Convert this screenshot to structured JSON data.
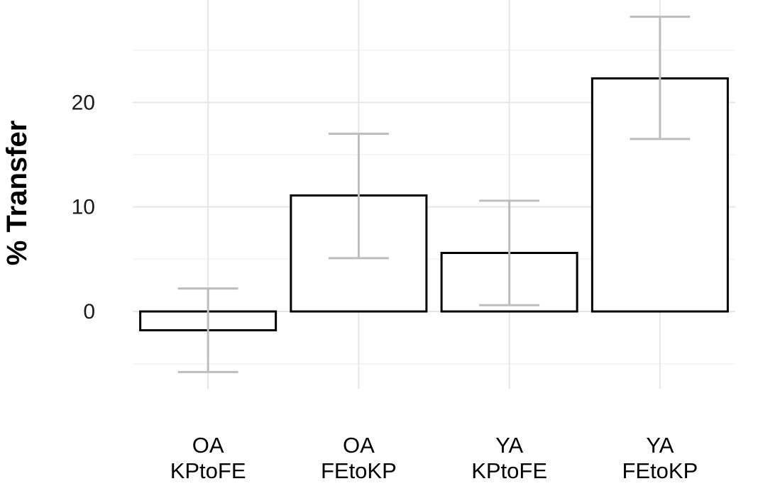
{
  "chart_data": {
    "type": "bar",
    "title": "",
    "xlabel": "",
    "ylabel": "% Transfer",
    "ylim": [
      -7.4,
      29.8
    ],
    "yticks": [
      0,
      10,
      20
    ],
    "grid": true,
    "legend": "none",
    "categories": [
      [
        "OA",
        "KPtoFE"
      ],
      [
        "OA",
        "FEtoKP"
      ],
      [
        "YA",
        "KPtoFE"
      ],
      [
        "YA",
        "FEtoKP"
      ]
    ],
    "values": [
      -1.8,
      11.1,
      5.6,
      22.3
    ],
    "error_low": [
      -5.8,
      5.1,
      0.6,
      16.5
    ],
    "error_high": [
      2.2,
      17.0,
      10.6,
      28.2
    ],
    "colors": {
      "bar_fill": "#ffffff",
      "bar_stroke": "#000000",
      "error_bar": "#bdbdbd",
      "grid_major": "#e6e6e6",
      "grid_minor": "#f2f2f2"
    }
  }
}
